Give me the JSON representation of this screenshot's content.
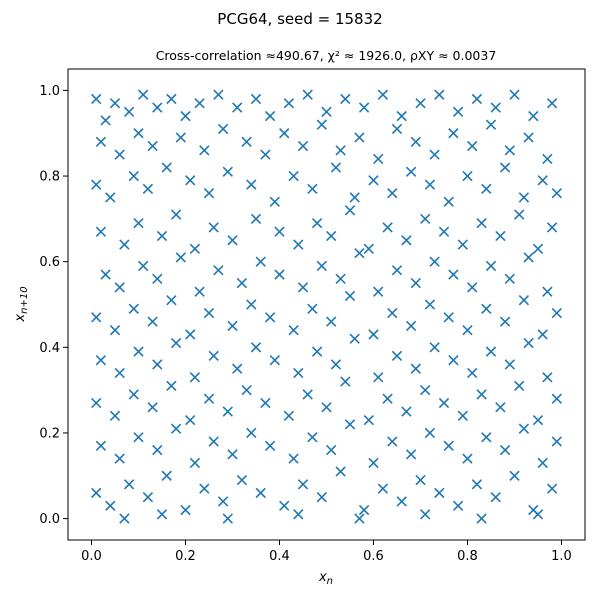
{
  "chart_data": {
    "type": "scatter",
    "title": "PCG64, seed = 15832",
    "subtitle": "Cross-correlation ≈490.67, χ² ≈ 1926.0, ρXY ≈ 0.0037",
    "xlabel": "x_n",
    "ylabel": "x_{n+10}",
    "xlim": [
      -0.05,
      1.05
    ],
    "ylim": [
      -0.05,
      1.05
    ],
    "xticks": [
      0.0,
      0.2,
      0.4,
      0.6,
      0.8,
      1.0
    ],
    "yticks": [
      0.0,
      0.2,
      0.4,
      0.6,
      0.8,
      1.0
    ],
    "xtick_labels": [
      "0.0",
      "0.2",
      "0.4",
      "0.6",
      "0.8",
      "1.0"
    ],
    "ytick_labels": [
      "0.0",
      "0.2",
      "0.4",
      "0.6",
      "0.8",
      "1.0"
    ],
    "marker": "x",
    "color": "#1f77b4",
    "grid": false,
    "series": [
      {
        "points": [
          [
            0.01,
            0.98
          ],
          [
            0.03,
            0.93
          ],
          [
            0.05,
            0.97
          ],
          [
            0.08,
            0.95
          ],
          [
            0.11,
            0.99
          ],
          [
            0.14,
            0.96
          ],
          [
            0.17,
            0.98
          ],
          [
            0.2,
            0.94
          ],
          [
            0.23,
            0.97
          ],
          [
            0.27,
            0.99
          ],
          [
            0.31,
            0.96
          ],
          [
            0.35,
            0.98
          ],
          [
            0.38,
            0.94
          ],
          [
            0.42,
            0.97
          ],
          [
            0.46,
            0.99
          ],
          [
            0.5,
            0.95
          ],
          [
            0.54,
            0.98
          ],
          [
            0.58,
            0.96
          ],
          [
            0.62,
            0.99
          ],
          [
            0.66,
            0.94
          ],
          [
            0.7,
            0.97
          ],
          [
            0.74,
            0.99
          ],
          [
            0.78,
            0.95
          ],
          [
            0.82,
            0.98
          ],
          [
            0.86,
            0.96
          ],
          [
            0.9,
            0.99
          ],
          [
            0.94,
            0.94
          ],
          [
            0.98,
            0.97
          ],
          [
            0.02,
            0.88
          ],
          [
            0.06,
            0.85
          ],
          [
            0.1,
            0.9
          ],
          [
            0.13,
            0.87
          ],
          [
            0.19,
            0.89
          ],
          [
            0.24,
            0.86
          ],
          [
            0.28,
            0.91
          ],
          [
            0.33,
            0.88
          ],
          [
            0.37,
            0.85
          ],
          [
            0.41,
            0.9
          ],
          [
            0.45,
            0.87
          ],
          [
            0.49,
            0.92
          ],
          [
            0.53,
            0.86
          ],
          [
            0.57,
            0.89
          ],
          [
            0.61,
            0.84
          ],
          [
            0.65,
            0.91
          ],
          [
            0.69,
            0.88
          ],
          [
            0.73,
            0.85
          ],
          [
            0.77,
            0.9
          ],
          [
            0.81,
            0.87
          ],
          [
            0.85,
            0.92
          ],
          [
            0.89,
            0.86
          ],
          [
            0.93,
            0.89
          ],
          [
            0.97,
            0.84
          ],
          [
            0.01,
            0.78
          ],
          [
            0.04,
            0.75
          ],
          [
            0.09,
            0.8
          ],
          [
            0.12,
            0.77
          ],
          [
            0.16,
            0.82
          ],
          [
            0.21,
            0.79
          ],
          [
            0.25,
            0.76
          ],
          [
            0.29,
            0.81
          ],
          [
            0.34,
            0.78
          ],
          [
            0.39,
            0.74
          ],
          [
            0.43,
            0.8
          ],
          [
            0.47,
            0.77
          ],
          [
            0.52,
            0.82
          ],
          [
            0.56,
            0.75
          ],
          [
            0.6,
            0.79
          ],
          [
            0.64,
            0.76
          ],
          [
            0.68,
            0.81
          ],
          [
            0.72,
            0.78
          ],
          [
            0.76,
            0.74
          ],
          [
            0.8,
            0.8
          ],
          [
            0.84,
            0.77
          ],
          [
            0.88,
            0.82
          ],
          [
            0.92,
            0.75
          ],
          [
            0.96,
            0.79
          ],
          [
            0.99,
            0.76
          ],
          [
            0.02,
            0.67
          ],
          [
            0.07,
            0.64
          ],
          [
            0.1,
            0.69
          ],
          [
            0.15,
            0.66
          ],
          [
            0.18,
            0.71
          ],
          [
            0.22,
            0.63
          ],
          [
            0.26,
            0.68
          ],
          [
            0.3,
            0.65
          ],
          [
            0.35,
            0.7
          ],
          [
            0.4,
            0.67
          ],
          [
            0.44,
            0.64
          ],
          [
            0.48,
            0.69
          ],
          [
            0.51,
            0.66
          ],
          [
            0.55,
            0.72
          ],
          [
            0.59,
            0.63
          ],
          [
            0.63,
            0.68
          ],
          [
            0.67,
            0.65
          ],
          [
            0.71,
            0.7
          ],
          [
            0.75,
            0.67
          ],
          [
            0.79,
            0.64
          ],
          [
            0.83,
            0.69
          ],
          [
            0.87,
            0.66
          ],
          [
            0.91,
            0.71
          ],
          [
            0.95,
            0.63
          ],
          [
            0.98,
            0.68
          ],
          [
            0.03,
            0.57
          ],
          [
            0.06,
            0.54
          ],
          [
            0.11,
            0.59
          ],
          [
            0.14,
            0.56
          ],
          [
            0.19,
            0.61
          ],
          [
            0.23,
            0.53
          ],
          [
            0.27,
            0.58
          ],
          [
            0.32,
            0.55
          ],
          [
            0.36,
            0.6
          ],
          [
            0.4,
            0.57
          ],
          [
            0.45,
            0.54
          ],
          [
            0.49,
            0.59
          ],
          [
            0.53,
            0.56
          ],
          [
            0.57,
            0.62
          ],
          [
            0.61,
            0.53
          ],
          [
            0.65,
            0.58
          ],
          [
            0.69,
            0.55
          ],
          [
            0.73,
            0.6
          ],
          [
            0.77,
            0.57
          ],
          [
            0.81,
            0.54
          ],
          [
            0.85,
            0.59
          ],
          [
            0.89,
            0.56
          ],
          [
            0.93,
            0.61
          ],
          [
            0.97,
            0.53
          ],
          [
            0.01,
            0.47
          ],
          [
            0.05,
            0.44
          ],
          [
            0.09,
            0.49
          ],
          [
            0.13,
            0.46
          ],
          [
            0.17,
            0.51
          ],
          [
            0.21,
            0.43
          ],
          [
            0.25,
            0.48
          ],
          [
            0.3,
            0.45
          ],
          [
            0.34,
            0.5
          ],
          [
            0.38,
            0.47
          ],
          [
            0.43,
            0.44
          ],
          [
            0.47,
            0.49
          ],
          [
            0.51,
            0.46
          ],
          [
            0.55,
            0.52
          ],
          [
            0.6,
            0.43
          ],
          [
            0.64,
            0.48
          ],
          [
            0.68,
            0.45
          ],
          [
            0.72,
            0.5
          ],
          [
            0.76,
            0.47
          ],
          [
            0.8,
            0.44
          ],
          [
            0.84,
            0.49
          ],
          [
            0.88,
            0.46
          ],
          [
            0.92,
            0.51
          ],
          [
            0.96,
            0.43
          ],
          [
            0.99,
            0.48
          ],
          [
            0.02,
            0.37
          ],
          [
            0.06,
            0.34
          ],
          [
            0.1,
            0.39
          ],
          [
            0.14,
            0.36
          ],
          [
            0.18,
            0.41
          ],
          [
            0.22,
            0.33
          ],
          [
            0.26,
            0.38
          ],
          [
            0.31,
            0.35
          ],
          [
            0.35,
            0.4
          ],
          [
            0.39,
            0.37
          ],
          [
            0.44,
            0.34
          ],
          [
            0.48,
            0.39
          ],
          [
            0.52,
            0.36
          ],
          [
            0.56,
            0.42
          ],
          [
            0.61,
            0.33
          ],
          [
            0.65,
            0.38
          ],
          [
            0.69,
            0.35
          ],
          [
            0.73,
            0.4
          ],
          [
            0.77,
            0.37
          ],
          [
            0.81,
            0.34
          ],
          [
            0.85,
            0.39
          ],
          [
            0.89,
            0.36
          ],
          [
            0.93,
            0.41
          ],
          [
            0.97,
            0.33
          ],
          [
            0.01,
            0.27
          ],
          [
            0.05,
            0.24
          ],
          [
            0.09,
            0.29
          ],
          [
            0.13,
            0.26
          ],
          [
            0.17,
            0.31
          ],
          [
            0.21,
            0.23
          ],
          [
            0.25,
            0.28
          ],
          [
            0.29,
            0.25
          ],
          [
            0.33,
            0.3
          ],
          [
            0.37,
            0.27
          ],
          [
            0.42,
            0.24
          ],
          [
            0.46,
            0.29
          ],
          [
            0.5,
            0.26
          ],
          [
            0.54,
            0.32
          ],
          [
            0.59,
            0.23
          ],
          [
            0.63,
            0.28
          ],
          [
            0.67,
            0.25
          ],
          [
            0.71,
            0.3
          ],
          [
            0.75,
            0.27
          ],
          [
            0.79,
            0.24
          ],
          [
            0.83,
            0.29
          ],
          [
            0.87,
            0.26
          ],
          [
            0.91,
            0.31
          ],
          [
            0.95,
            0.23
          ],
          [
            0.99,
            0.28
          ],
          [
            0.02,
            0.17
          ],
          [
            0.06,
            0.14
          ],
          [
            0.1,
            0.19
          ],
          [
            0.14,
            0.16
          ],
          [
            0.18,
            0.21
          ],
          [
            0.22,
            0.13
          ],
          [
            0.26,
            0.18
          ],
          [
            0.3,
            0.15
          ],
          [
            0.34,
            0.2
          ],
          [
            0.38,
            0.17
          ],
          [
            0.43,
            0.14
          ],
          [
            0.47,
            0.19
          ],
          [
            0.51,
            0.16
          ],
          [
            0.55,
            0.22
          ],
          [
            0.6,
            0.13
          ],
          [
            0.64,
            0.18
          ],
          [
            0.68,
            0.15
          ],
          [
            0.72,
            0.2
          ],
          [
            0.76,
            0.17
          ],
          [
            0.8,
            0.14
          ],
          [
            0.84,
            0.19
          ],
          [
            0.88,
            0.16
          ],
          [
            0.92,
            0.21
          ],
          [
            0.96,
            0.13
          ],
          [
            0.99,
            0.18
          ],
          [
            0.01,
            0.06
          ],
          [
            0.04,
            0.03
          ],
          [
            0.08,
            0.08
          ],
          [
            0.12,
            0.05
          ],
          [
            0.16,
            0.1
          ],
          [
            0.2,
            0.02
          ],
          [
            0.24,
            0.07
          ],
          [
            0.28,
            0.04
          ],
          [
            0.32,
            0.09
          ],
          [
            0.36,
            0.06
          ],
          [
            0.41,
            0.03
          ],
          [
            0.45,
            0.08
          ],
          [
            0.49,
            0.05
          ],
          [
            0.53,
            0.11
          ],
          [
            0.58,
            0.02
          ],
          [
            0.62,
            0.07
          ],
          [
            0.66,
            0.04
          ],
          [
            0.7,
            0.09
          ],
          [
            0.74,
            0.06
          ],
          [
            0.78,
            0.03
          ],
          [
            0.82,
            0.08
          ],
          [
            0.86,
            0.05
          ],
          [
            0.9,
            0.1
          ],
          [
            0.94,
            0.02
          ],
          [
            0.98,
            0.07
          ],
          [
            0.07,
            0.0
          ],
          [
            0.15,
            0.01
          ],
          [
            0.29,
            0.0
          ],
          [
            0.44,
            0.01
          ],
          [
            0.57,
            0.0
          ],
          [
            0.71,
            0.01
          ],
          [
            0.83,
            0.0
          ],
          [
            0.95,
            0.01
          ]
        ]
      }
    ]
  }
}
